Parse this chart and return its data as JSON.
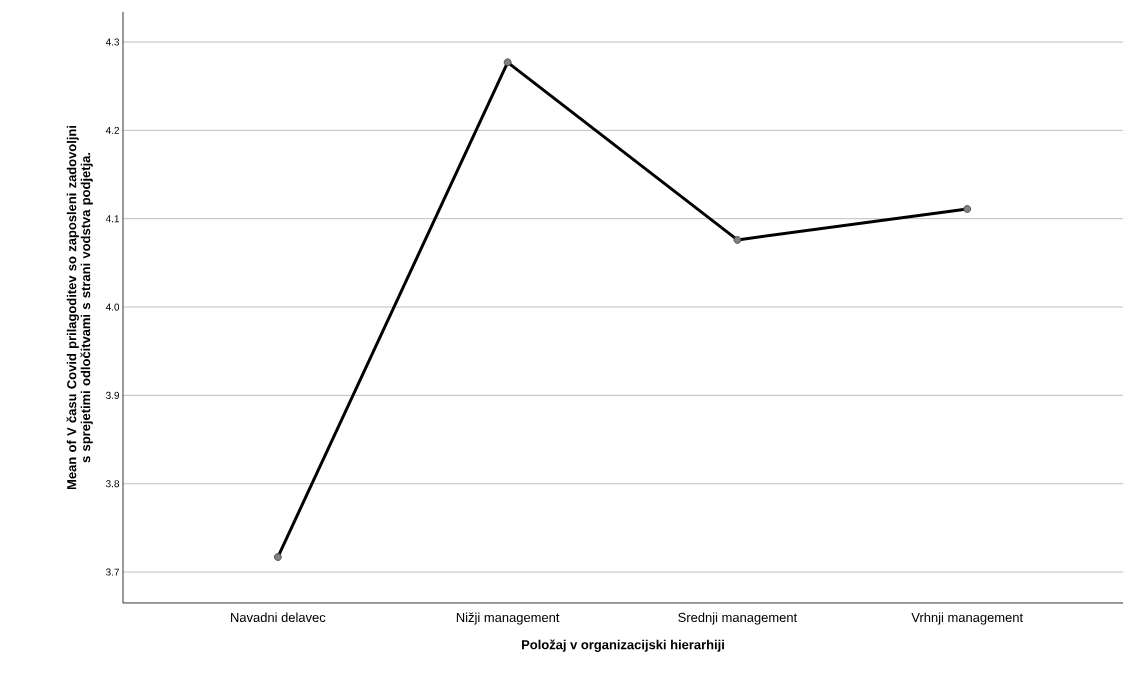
{
  "chart_data": {
    "type": "line",
    "xlabel": "Položaj v organizacijski hierarhiji",
    "ylabel": "Mean of V času Covid prilagoditev so zaposleni zadovoljni s sprejetimi odločitvami s strani vodstva podjetja.",
    "categories": [
      "Navadni delavec",
      "Nižji management",
      "Srednji management",
      "Vrhnji management"
    ],
    "series": [
      {
        "color": "#000000",
        "values": [
          3.717,
          4.277,
          4.076,
          4.111
        ]
      }
    ],
    "ylim": [
      3.665,
      4.334
    ],
    "yticks": [
      {
        "value": 3.7,
        "label": "3.7"
      },
      {
        "value": 3.8,
        "label": "3.8"
      },
      {
        "value": 3.9,
        "label": "3.9"
      },
      {
        "value": 4.0,
        "label": "4.0"
      },
      {
        "value": 4.1,
        "label": "4.1"
      },
      {
        "value": 4.2,
        "label": "4.2"
      },
      {
        "value": 4.3,
        "label": "4.3"
      }
    ],
    "grid": "y",
    "marker": "circle",
    "line_style": "solid"
  }
}
